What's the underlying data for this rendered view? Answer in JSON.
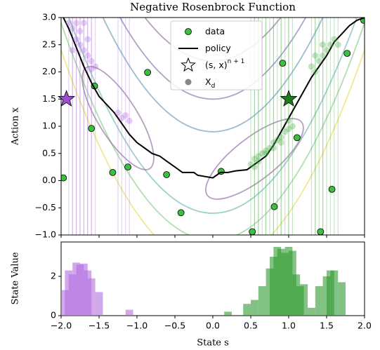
{
  "chart_data": [
    {
      "type": "scatter",
      "title": "Negative Rosenbrock Function",
      "ylabel": "Action x",
      "xlim": [
        -2,
        2
      ],
      "ylim": [
        -1,
        3
      ],
      "yticks": [
        {
          "value": -1,
          "label": "−1.0"
        },
        {
          "value": -0.5,
          "label": "−0.5"
        },
        {
          "value": 0,
          "label": "0.0"
        },
        {
          "value": 0.5,
          "label": "0.5"
        },
        {
          "value": 1,
          "label": "1.0"
        },
        {
          "value": 1.5,
          "label": "1.5"
        },
        {
          "value": 2,
          "label": "2.0"
        },
        {
          "value": 2.5,
          "label": "2.5"
        },
        {
          "value": 3,
          "label": "3.0"
        }
      ],
      "series": [
        {
          "name": "data",
          "kind": "points",
          "color": "#3cbf3c",
          "x": [
            1.99,
            1.77,
            0.92,
            -0.86,
            -1.56,
            -1.6,
            -1.32,
            -1.12,
            -0.61,
            -1.97,
            0.11,
            -0.42,
            0.81,
            1.57,
            1.11,
            0.52,
            1.42
          ],
          "values": [
            2.95,
            2.34,
            2.16,
            1.99,
            1.74,
            0.96,
            0.15,
            0.25,
            0.11,
            0.05,
            0.17,
            -0.59,
            -0.48,
            -0.16,
            0.79,
            -0.94,
            -0.94
          ]
        },
        {
          "name": "policy",
          "kind": "line",
          "color": "#000000",
          "x": [
            -1.97,
            -1.9,
            -1.8,
            -1.7,
            -1.6,
            -1.5,
            -1.4,
            -1.3,
            -1.2,
            -1.1,
            -1.0,
            -0.9,
            -0.8,
            -0.7,
            -0.6,
            -0.5,
            -0.4,
            -0.25,
            -0.2,
            0.0,
            0.1,
            0.2,
            0.3,
            0.45,
            0.6,
            0.7,
            0.8,
            0.9,
            1.0,
            1.1,
            1.2,
            1.3,
            1.4,
            1.5,
            1.6,
            1.7,
            1.8,
            1.9,
            2.0
          ],
          "values": [
            3.0,
            2.8,
            2.45,
            2.1,
            1.8,
            1.55,
            1.4,
            1.25,
            1.05,
            0.85,
            0.7,
            0.6,
            0.5,
            0.45,
            0.35,
            0.25,
            0.15,
            0.15,
            0.1,
            0.05,
            0.15,
            0.15,
            0.18,
            0.2,
            0.35,
            0.45,
            0.65,
            0.9,
            1.15,
            1.4,
            1.65,
            1.9,
            2.1,
            2.3,
            2.55,
            2.7,
            2.85,
            2.95,
            3.0
          ]
        },
        {
          "name": "(s, x)",
          "name_sup": "n + 1",
          "kind": "stars",
          "colors": [
            "#9b4fd0",
            "#1f7a1f"
          ],
          "x": [
            -1.93,
            1.0
          ],
          "values": [
            1.5,
            1.5
          ]
        },
        {
          "name": "X",
          "name_sub": "d",
          "kind": "cloud",
          "color": "#888888",
          "groups": [
            {
              "color": "#b36ee0",
              "x": [
                -1.9,
                -1.85,
                -1.8,
                -1.75,
                -1.7,
                -1.65,
                -1.6,
                -1.55,
                -1.7,
                -1.8,
                -1.6,
                -1.25,
                -1.2,
                -1.15,
                -1.1,
                -1.85,
                -1.75,
                -1.65
              ],
              "values": [
                2.9,
                2.8,
                2.6,
                2.5,
                2.4,
                2.3,
                2.2,
                2.1,
                2.9,
                2.9,
                2.05,
                1.25,
                1.15,
                1.2,
                1.1,
                2.4,
                2.75,
                2.6
              ]
            },
            {
              "color": "#4cae4c",
              "x": [
                0.5,
                0.55,
                0.6,
                0.65,
                0.7,
                0.75,
                0.8,
                0.85,
                0.9,
                0.95,
                1.0,
                1.05,
                0.55,
                0.7,
                0.9,
                1.0,
                1.3,
                1.35,
                1.4,
                1.45,
                1.5,
                1.55,
                1.6,
                1.65,
                1.45,
                1.35,
                0.6,
                0.8
              ],
              "values": [
                0.3,
                0.4,
                0.45,
                0.5,
                0.55,
                0.6,
                0.7,
                0.75,
                0.8,
                0.9,
                0.95,
                1.0,
                0.25,
                0.5,
                0.7,
                1.1,
                2.1,
                2.0,
                2.2,
                2.3,
                2.4,
                2.5,
                2.6,
                2.5,
                2.5,
                2.3,
                0.35,
                0.6
              ]
            }
          ]
        }
      ]
    },
    {
      "type": "bar",
      "ylabel": "State Value",
      "xlabel": "State s",
      "xlim": [
        -2,
        2
      ],
      "ylim": [
        0,
        3.75
      ],
      "yticks": [
        0,
        2
      ],
      "bin_width": 0.1,
      "xticks": [
        {
          "value": -2,
          "label": "−2.0"
        },
        {
          "value": -1.5,
          "label": "−1.5"
        },
        {
          "value": -1,
          "label": "−1.0"
        },
        {
          "value": -0.5,
          "label": "−0.5"
        },
        {
          "value": 0,
          "label": "0.0"
        },
        {
          "value": 0.5,
          "label": "0.5"
        },
        {
          "value": 1,
          "label": "1.0"
        },
        {
          "value": 1.5,
          "label": "1.5"
        },
        {
          "value": 2,
          "label": "2.0"
        }
      ],
      "series": [
        {
          "color": "#b36ee0",
          "x": [
            -1.95,
            -1.9,
            -1.85,
            -1.8,
            -1.75,
            -1.7,
            -1.65,
            -1.6,
            -1.5,
            -1.1
          ],
          "values": [
            1.3,
            2.3,
            2.1,
            2.7,
            2.6,
            2.65,
            2.3,
            1.9,
            1.2,
            0.3
          ]
        },
        {
          "color": "#2f9a2f",
          "x": [
            0.2,
            0.45,
            0.55,
            0.65,
            0.75,
            0.8,
            0.85,
            0.9,
            0.95,
            1.0,
            1.05,
            1.1,
            1.15,
            1.2,
            1.3,
            1.4,
            1.5,
            1.55,
            1.6,
            1.7
          ],
          "values": [
            0.2,
            0.6,
            0.8,
            1.5,
            2.4,
            3.0,
            3.5,
            3.4,
            3.2,
            3.5,
            3.3,
            2.1,
            1.5,
            1.6,
            0.4,
            1.5,
            2.0,
            2.3,
            2.3,
            1.7
          ]
        }
      ]
    }
  ]
}
